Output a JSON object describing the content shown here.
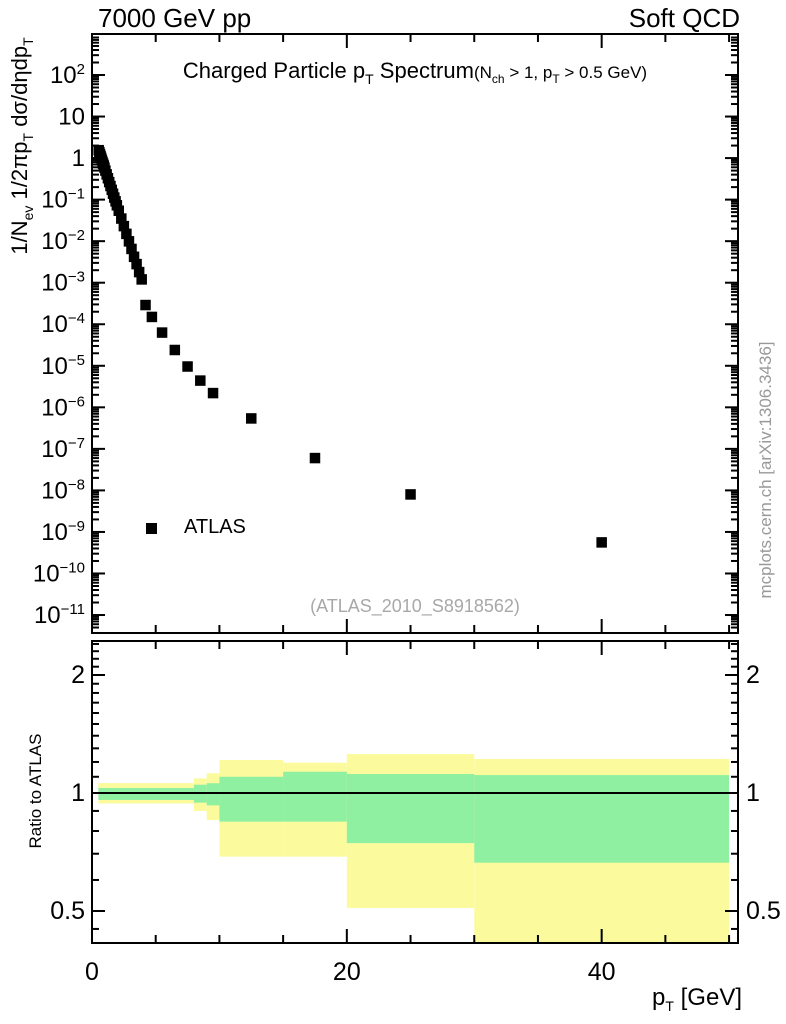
{
  "header": {
    "left": "7000 GeV pp",
    "right": "Soft QCD"
  },
  "title_parts": [
    {
      "text": "Charged Particle p"
    },
    {
      "text": "T",
      "style": "sub"
    },
    {
      "text": " Spectrum"
    },
    {
      "text": "(N",
      "style": "small"
    },
    {
      "text": "ch",
      "style": "smallsub"
    },
    {
      "text": " > 1, p",
      "style": "small"
    },
    {
      "text": "T",
      "style": "smallsub"
    },
    {
      "text": " > 0.5 GeV)",
      "style": "small"
    }
  ],
  "legend": {
    "label": "ATLAS",
    "marker": "filled-square"
  },
  "watermark": "(ATLAS_2010_S8918562)",
  "side_note": "mcplots.cern.ch [arXiv:1306.3436]",
  "colors": {
    "marker": "#000000",
    "band_outer": "#fbfb9e",
    "band_inner": "#8ef0a0",
    "frame": "#000000",
    "gray_text": "#999999",
    "watermark_text": "#a8a8a8"
  },
  "axes": {
    "x": {
      "label_parts": [
        {
          "text": "p"
        },
        {
          "text": "T",
          "style": "sub"
        },
        {
          "text": "  [GeV]"
        }
      ],
      "min": 0,
      "max": 50.7,
      "minor_step": 5,
      "major_ticks": [
        {
          "value": 0,
          "label": "0"
        },
        {
          "value": 20,
          "label": "20"
        },
        {
          "value": 40,
          "label": "40"
        }
      ]
    },
    "y_main": {
      "label_parts": [
        {
          "text": "1/N"
        },
        {
          "text": "ev",
          "style": "sub"
        },
        {
          "text": " 1/2"
        },
        {
          "text": "π"
        },
        {
          "text": "p"
        },
        {
          "text": "T",
          "style": "sub"
        },
        {
          "text": " d"
        },
        {
          "text": "σ"
        },
        {
          "text": "/d"
        },
        {
          "text": "η"
        },
        {
          "text": "dp"
        },
        {
          "text": "T",
          "style": "sub"
        }
      ],
      "scale": "log",
      "decade_labels": [
        {
          "exp": 2,
          "base": "10",
          "sup": "2"
        },
        {
          "exp": 1,
          "base": "10",
          "sup": ""
        },
        {
          "exp": 0,
          "base": "1",
          "sup": ""
        },
        {
          "exp": -1,
          "base": "10",
          "sup": "−1"
        },
        {
          "exp": -2,
          "base": "10",
          "sup": "−2"
        },
        {
          "exp": -3,
          "base": "10",
          "sup": "−3"
        },
        {
          "exp": -4,
          "base": "10",
          "sup": "−4"
        },
        {
          "exp": -5,
          "base": "10",
          "sup": "−5"
        },
        {
          "exp": -6,
          "base": "10",
          "sup": "−6"
        },
        {
          "exp": -7,
          "base": "10",
          "sup": "−7"
        },
        {
          "exp": -8,
          "base": "10",
          "sup": "−8"
        },
        {
          "exp": -9,
          "base": "10",
          "sup": "−9"
        },
        {
          "exp": -10,
          "base": "10",
          "sup": "−10"
        },
        {
          "exp": -11,
          "base": "10",
          "sup": "−11"
        }
      ]
    },
    "y_ratio": {
      "label": "Ratio to ATLAS",
      "scale": "log",
      "min": 0.414,
      "max": 2.44,
      "major_ticks": [
        {
          "value": 2,
          "label": "2"
        },
        {
          "value": 1,
          "label": "1"
        },
        {
          "value": 0.5,
          "label": "0.5"
        }
      ],
      "minor_ticks": [
        0.45,
        0.6,
        0.7,
        0.8,
        0.9,
        1.1,
        1.2,
        1.3,
        1.4,
        1.5,
        1.6,
        1.7,
        1.8,
        1.9,
        2.1,
        2.2,
        2.3,
        2.4
      ]
    }
  },
  "chart_data": [
    {
      "type": "scatter",
      "title": "Charged Particle pT Spectrum (Nch > 1, pT > 0.5 GeV)",
      "xlabel": "pT [GeV]",
      "ylabel": "1/Nev 1/2πpT dσ/dηdpT",
      "xlim": [
        0,
        50.7
      ],
      "ylim": [
        4e-12,
        1000.0
      ],
      "yscale": "log",
      "legend_position": "left-middle",
      "series": [
        {
          "name": "ATLAS",
          "marker": "filled-square",
          "color": "#000000",
          "points": [
            [
              0.525,
              1.55
            ],
            [
              0.575,
              1.39
            ],
            [
              0.625,
              1.25
            ],
            [
              0.675,
              1.12
            ],
            [
              0.725,
              1.01
            ],
            [
              0.775,
              0.9
            ],
            [
              0.825,
              0.81
            ],
            [
              0.875,
              0.73
            ],
            [
              0.925,
              0.66
            ],
            [
              0.975,
              0.59
            ],
            [
              1.05,
              0.5
            ],
            [
              1.15,
              0.405
            ],
            [
              1.25,
              0.327
            ],
            [
              1.35,
              0.264
            ],
            [
              1.45,
              0.213
            ],
            [
              1.55,
              0.172
            ],
            [
              1.65,
              0.139
            ],
            [
              1.75,
              0.112
            ],
            [
              1.85,
              0.091
            ],
            [
              1.95,
              0.073
            ],
            [
              2.1,
              0.054
            ],
            [
              2.3,
              0.035
            ],
            [
              2.5,
              0.023
            ],
            [
              2.7,
              0.015
            ],
            [
              2.9,
              0.0099
            ],
            [
              3.1,
              0.0065
            ],
            [
              3.3,
              0.0042
            ],
            [
              3.5,
              0.0028
            ],
            [
              3.7,
              0.0018
            ],
            [
              3.9,
              0.0012
            ],
            [
              4.2,
              0.00029
            ],
            [
              4.7,
              0.00015
            ],
            [
              5.5,
              6.3e-05
            ],
            [
              6.5,
              2.4e-05
            ],
            [
              7.5,
              9.6e-06
            ],
            [
              8.5,
              4.4e-06
            ],
            [
              9.5,
              2.2e-06
            ],
            [
              12.5,
              5.4e-07
            ],
            [
              17.5,
              6e-08
            ],
            [
              25,
              8e-09
            ],
            [
              40,
              5.6e-10
            ]
          ]
        }
      ]
    },
    {
      "type": "band",
      "ylabel": "Ratio to ATLAS",
      "xlim": [
        0,
        50.7
      ],
      "ylim": [
        0.414,
        2.44
      ],
      "yscale": "log",
      "reference_line": 1.0,
      "bands": [
        {
          "pt": [
            0.5,
            8
          ],
          "outer": [
            0.94,
            1.06
          ],
          "inner": [
            0.96,
            1.03
          ]
        },
        {
          "pt": [
            8,
            9
          ],
          "outer": [
            0.9,
            1.09
          ],
          "inner": [
            0.945,
            1.05
          ]
        },
        {
          "pt": [
            9,
            10
          ],
          "outer": [
            0.853,
            1.123
          ],
          "inner": [
            0.93,
            1.059
          ]
        },
        {
          "pt": [
            10,
            15
          ],
          "outer": [
            0.688,
            1.214
          ],
          "inner": [
            0.845,
            1.1
          ]
        },
        {
          "pt": [
            15,
            20
          ],
          "outer": [
            0.688,
            1.195
          ],
          "inner": [
            0.845,
            1.133
          ]
        },
        {
          "pt": [
            20,
            30
          ],
          "outer": [
            0.509,
            1.257
          ],
          "inner": [
            0.745,
            1.118
          ]
        },
        {
          "pt": [
            30,
            50
          ],
          "outer": [
            0.4,
            1.221
          ],
          "inner": [
            0.664,
            1.111
          ]
        }
      ]
    }
  ]
}
